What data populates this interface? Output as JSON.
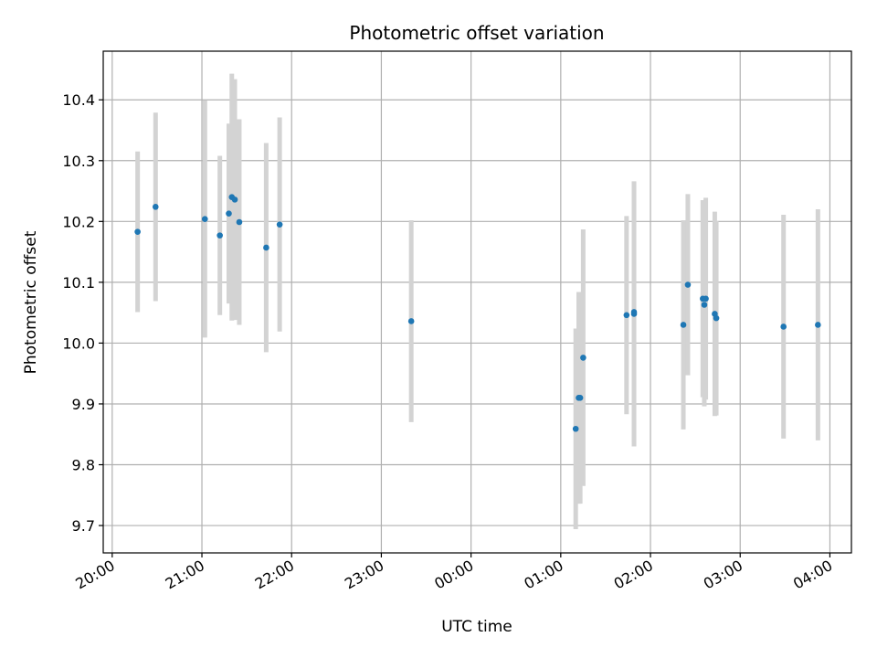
{
  "chart_data": {
    "type": "scatter",
    "title": "Photometric offset variation",
    "xlabel": "UTC time",
    "ylabel": "Photometric offset",
    "x_tick_labels": [
      "20:00",
      "21:00",
      "22:00",
      "23:00",
      "00:00",
      "01:00",
      "02:00",
      "03:00",
      "04:00"
    ],
    "y_tick_labels": [
      "9.7",
      "9.8",
      "9.9",
      "10.0",
      "10.1",
      "10.2",
      "10.3",
      "10.4"
    ],
    "x_ticks_hours": [
      0,
      1,
      2,
      3,
      4,
      5,
      6,
      7,
      8
    ],
    "y_ticks": [
      9.7,
      9.8,
      9.9,
      10.0,
      10.1,
      10.2,
      10.3,
      10.4
    ],
    "xlim_hours_since_first_tick": [
      -0.1,
      8.24
    ],
    "ylim": [
      9.655,
      10.48
    ],
    "grid": true,
    "colors": {
      "point": "#1f77b4",
      "errorbar": "#d3d3d3",
      "grid": "#b0b0b0"
    },
    "points": [
      {
        "time": "20:17",
        "y": 10.183,
        "err": 0.132
      },
      {
        "time": "20:29",
        "y": 10.224,
        "err": 0.155
      },
      {
        "time": "21:02",
        "y": 10.204,
        "err": 0.195
      },
      {
        "time": "21:12",
        "y": 10.177,
        "err": 0.131
      },
      {
        "time": "21:18",
        "y": 10.213,
        "err": 0.148
      },
      {
        "time": "21:20",
        "y": 10.24,
        "err": 0.203
      },
      {
        "time": "21:22",
        "y": 10.236,
        "err": 0.198
      },
      {
        "time": "21:25",
        "y": 10.199,
        "err": 0.169
      },
      {
        "time": "21:43",
        "y": 10.157,
        "err": 0.172
      },
      {
        "time": "21:52",
        "y": 10.195,
        "err": 0.176
      },
      {
        "time": "23:20",
        "y": 10.036,
        "err": 0.166
      },
      {
        "time": "01:10",
        "y": 9.859,
        "err": 0.165
      },
      {
        "time": "01:12",
        "y": 9.91,
        "err": 0.174
      },
      {
        "time": "01:13",
        "y": 9.91,
        "err": 0.174
      },
      {
        "time": "01:15",
        "y": 9.976,
        "err": 0.211
      },
      {
        "time": "01:44",
        "y": 10.046,
        "err": 0.163
      },
      {
        "time": "01:49",
        "y": 10.048,
        "err": 0.218
      },
      {
        "time": "01:49",
        "y": 10.051,
        "err": 0.214
      },
      {
        "time": "02:22",
        "y": 10.03,
        "err": 0.172
      },
      {
        "time": "02:25",
        "y": 10.096,
        "err": 0.149
      },
      {
        "time": "02:35",
        "y": 10.073,
        "err": 0.162
      },
      {
        "time": "02:36",
        "y": 10.063,
        "err": 0.167
      },
      {
        "time": "02:37",
        "y": 10.073,
        "err": 0.166
      },
      {
        "time": "02:43",
        "y": 10.048,
        "err": 0.168
      },
      {
        "time": "02:44",
        "y": 10.041,
        "err": 0.16
      },
      {
        "time": "03:29",
        "y": 10.027,
        "err": 0.184
      },
      {
        "time": "03:52",
        "y": 10.03,
        "err": 0.19
      }
    ]
  }
}
